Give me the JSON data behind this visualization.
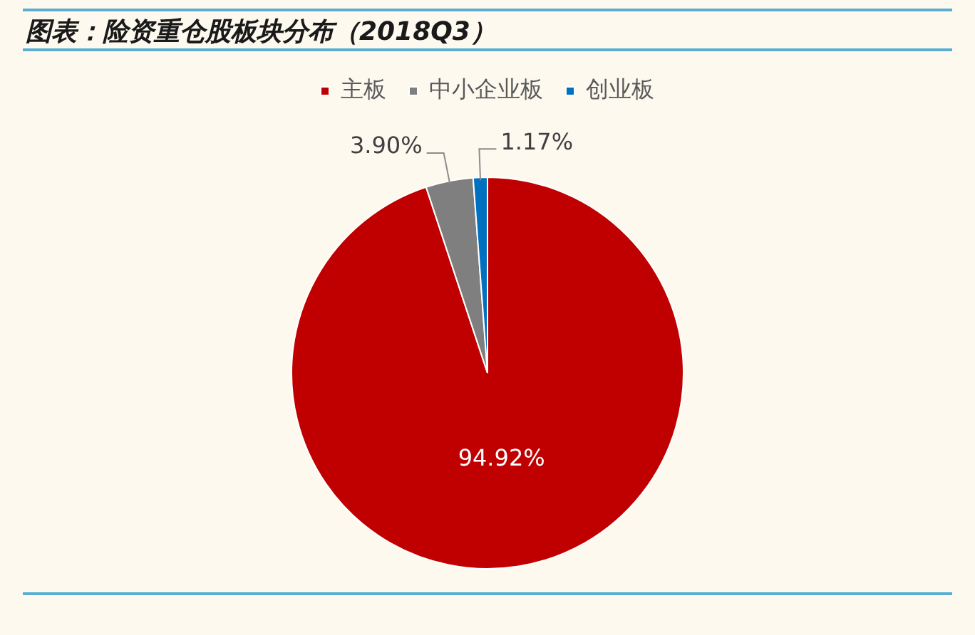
{
  "chart_data": {
    "type": "pie",
    "title": "图表：险资重仓股板块分布（2018Q3）",
    "categories": [
      "主板",
      "中小企业板",
      "创业板"
    ],
    "values": [
      94.92,
      3.9,
      1.17
    ],
    "colors": [
      "#c00000",
      "#7f7f7f",
      "#0070c0"
    ],
    "value_labels": [
      "94.92%",
      "3.90%",
      "1.17%"
    ],
    "legend": "top"
  }
}
